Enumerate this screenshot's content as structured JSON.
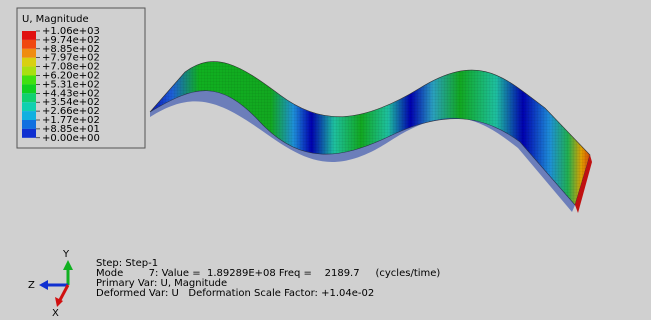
{
  "legend": {
    "title": "U, Magnitude",
    "labels": [
      "+1.06e+03",
      "+9.74e+02",
      "+8.85e+02",
      "+7.97e+02",
      "+7.08e+02",
      "+6.20e+02",
      "+5.31e+02",
      "+4.43e+02",
      "+3.54e+02",
      "+2.66e+02",
      "+1.77e+02",
      "+8.85e+01",
      "+0.00e+00"
    ]
  },
  "info": [
    "Step: Step-1",
    "Mode        7: Value =  1.89289E+08 Freq =    2189.7     (cycles/time)",
    "Primary Var: U, Magnitude",
    "Deformed Var: U   Deformation Scale Factor: +1.04e-02"
  ],
  "triad": {
    "x": "X",
    "y": "Y",
    "z": "Z"
  }
}
